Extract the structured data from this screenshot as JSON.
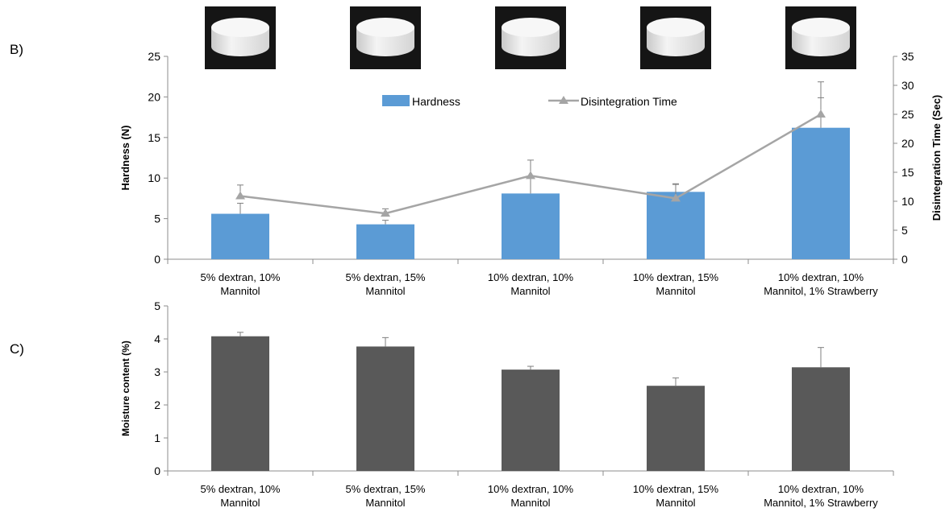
{
  "panels": {
    "b_label": "B)",
    "c_label": "C)"
  },
  "colors": {
    "hardness_bar": "#5b9bd5",
    "disintegration_line": "#a5a5a5",
    "moisture_bar": "#595959",
    "axis": "#8c8c8c",
    "error_bar": "#7f7f7f"
  },
  "chart_data": [
    {
      "type": "bar",
      "panel": "B",
      "categories": [
        [
          "5% dextran, 10%",
          "Mannitol"
        ],
        [
          "5% dextran, 15%",
          "Mannitol"
        ],
        [
          "10% dextran, 10%",
          "Mannitol"
        ],
        [
          "10% dextran, 15%",
          "Mannitol"
        ],
        [
          "10% dextran, 10%",
          "Mannitol, 1% Strawberry"
        ]
      ],
      "series": [
        {
          "name": "Hardness",
          "type": "bar",
          "axis": "left",
          "values": [
            5.6,
            4.3,
            8.1,
            8.3,
            16.2
          ],
          "error": [
            1.3,
            0.5,
            1.9,
            1.0,
            3.7
          ]
        },
        {
          "name": "Disintegration Time",
          "type": "line",
          "axis": "right",
          "marker": "triangle",
          "values": [
            10.9,
            7.9,
            14.4,
            10.5,
            25.0
          ],
          "error": [
            1.9,
            0.8,
            2.7,
            2.4,
            5.6
          ]
        }
      ],
      "ylabel": "Hardness (N)",
      "ylim": [
        0,
        25
      ],
      "yticks": [
        "0",
        "5",
        "10",
        "15",
        "20",
        "25"
      ],
      "y2label": "Disintegration Time (Sec)",
      "y2lim": [
        0,
        35
      ],
      "y2ticks": [
        "0",
        "5",
        "10",
        "15",
        "20",
        "25",
        "30",
        "35"
      ],
      "legend_position": "top-center",
      "grid": false,
      "images_above_bars": 5
    },
    {
      "type": "bar",
      "panel": "C",
      "categories": [
        [
          "5% dextran, 10%",
          "Mannitol"
        ],
        [
          "5% dextran, 15%",
          "Mannitol"
        ],
        [
          "10% dextran, 10%",
          "Mannitol"
        ],
        [
          "10% dextran, 15%",
          "Mannitol"
        ],
        [
          "10% dextran, 10%",
          "Mannitol, 1% Strawberry"
        ]
      ],
      "values": [
        4.08,
        3.77,
        3.07,
        2.58,
        3.14
      ],
      "error": [
        0.12,
        0.27,
        0.1,
        0.24,
        0.6
      ],
      "ylabel": "Moisture content (%)",
      "ylim": [
        0,
        5
      ],
      "yticks": [
        "0",
        "1",
        "2",
        "3",
        "4",
        "5"
      ],
      "grid": false
    }
  ]
}
